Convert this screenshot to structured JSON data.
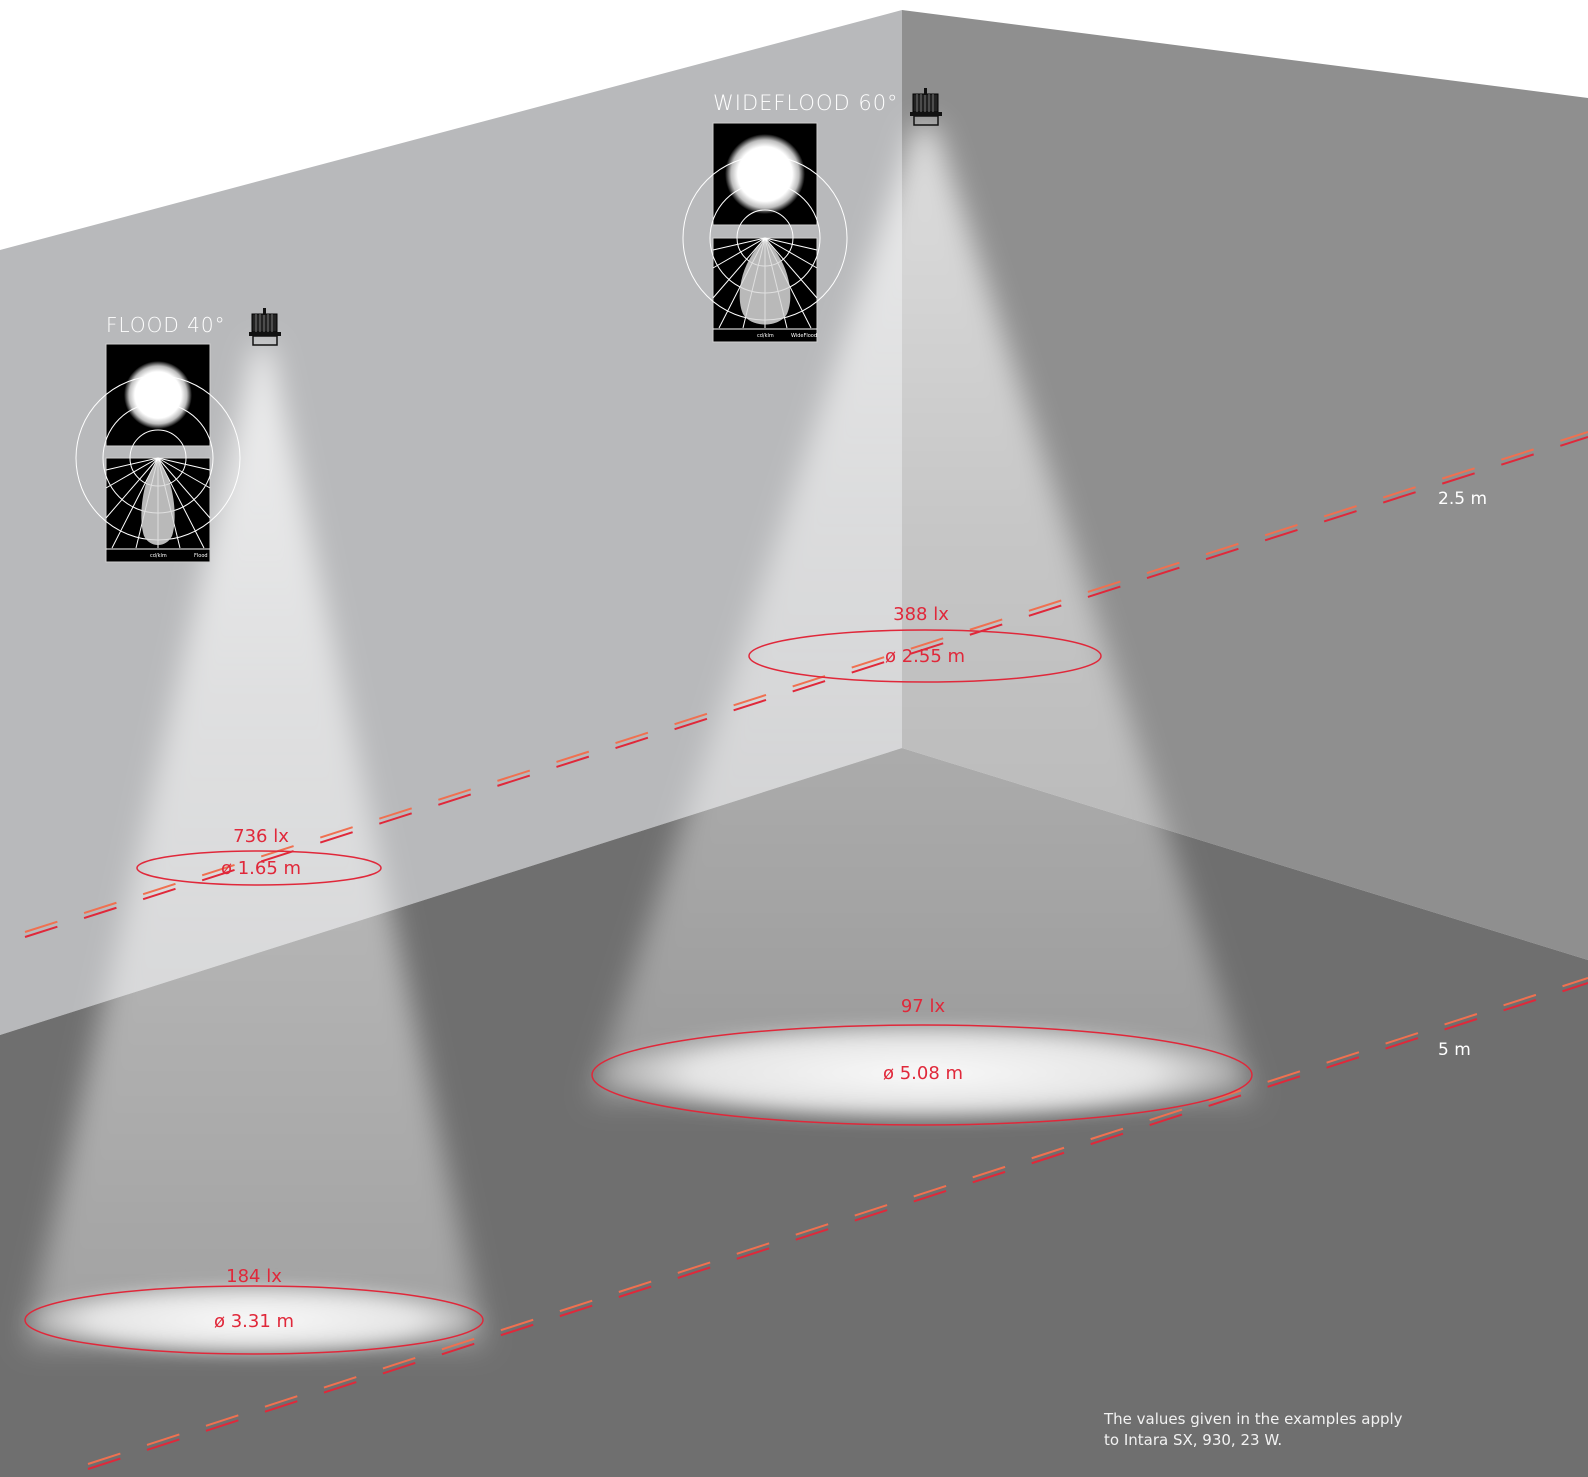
{
  "luminaires": {
    "flood": {
      "label": "FLOOD 40°",
      "polar_footer_left": "cd/klm",
      "polar_footer_right": "Flood",
      "wall_illuminance": "736 lx",
      "wall_diameter": "ø 1.65 m",
      "floor_illuminance": "184 lx",
      "floor_diameter": "ø 3.31 m"
    },
    "wideflood": {
      "label": "WIDEFLOOD 60°",
      "polar_footer_left": "cd/klm",
      "polar_footer_right": "WideFlood",
      "wall_illuminance": "388 lx",
      "wall_diameter": "ø 2.55 m",
      "floor_illuminance": "97 lx",
      "floor_diameter": "ø 5.08 m"
    }
  },
  "distances": {
    "near": "2.5 m",
    "far": "5 m"
  },
  "note": {
    "line1": "The values given in the examples apply",
    "line2": "to Intara SX, 930, 23 W."
  },
  "colors": {
    "left_wall": "#b8b9bb",
    "right_wall": "#8f8f8f",
    "floor": "#6f6f6f",
    "accent_red": "#e0283a",
    "dash_orange": "#f07050",
    "beam": "#ffffff"
  },
  "icons": {
    "luminaire": "downlight-icon",
    "beam_pattern": "light-spot-thumbnail",
    "polar_diagram": "polar-curve-thumbnail"
  }
}
